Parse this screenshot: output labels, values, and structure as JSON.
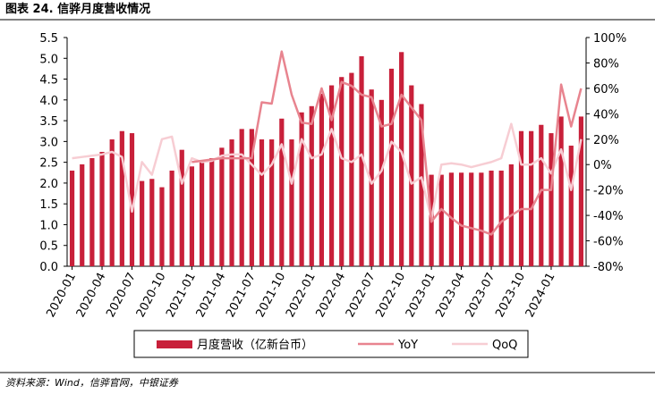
{
  "header": {
    "title": "图表 24.  信骅月度营收情况"
  },
  "chart_data": {
    "type": "bar_line",
    "categories": [
      "2020-01",
      null,
      null,
      "2020-04",
      null,
      null,
      "2020-07",
      null,
      null,
      "2020-10",
      null,
      null,
      "2021-01",
      null,
      null,
      "2021-04",
      null,
      null,
      "2021-07",
      null,
      null,
      "2021-10",
      null,
      null,
      "2022-01",
      null,
      null,
      "2022-04",
      null,
      null,
      "2022-07",
      null,
      null,
      "2022-10",
      null,
      null,
      "2023-01",
      null,
      null,
      "2023-04",
      null,
      null,
      "2023-07",
      null,
      null,
      "2023-10",
      null,
      null,
      "2024-01",
      null,
      null,
      null
    ],
    "series": [
      {
        "name": "月度营收（亿新台币）",
        "type": "bar",
        "color": "#c8203a",
        "values": [
          2.3,
          2.45,
          2.6,
          2.75,
          3.05,
          3.25,
          3.2,
          2.05,
          2.1,
          1.9,
          2.3,
          2.8,
          2.4,
          2.55,
          2.6,
          2.85,
          3.05,
          3.3,
          3.3,
          3.05,
          3.05,
          3.55,
          3.05,
          3.7,
          3.85,
          4.15,
          4.35,
          4.55,
          4.65,
          5.05,
          4.25,
          4.0,
          4.75,
          5.15,
          4.35,
          3.9,
          2.2,
          2.2,
          2.25,
          2.25,
          2.25,
          2.25,
          2.3,
          2.3,
          2.45,
          3.25,
          3.25,
          3.4,
          3.2,
          3.6,
          2.9,
          3.6
        ]
      },
      {
        "name": "YoY",
        "type": "line",
        "axis": "y2",
        "color": "#e8848f",
        "values": [
          null,
          null,
          null,
          null,
          null,
          null,
          null,
          null,
          null,
          null,
          null,
          null,
          2,
          3,
          4,
          5,
          5,
          5,
          5,
          49,
          48,
          89,
          55,
          33,
          32,
          60,
          35,
          65,
          62,
          55,
          53,
          30,
          32,
          55,
          45,
          35,
          -45,
          -35,
          -42,
          -48,
          -50,
          -52,
          -55,
          -45,
          -40,
          -35,
          -35,
          -20,
          -20,
          63,
          30,
          60
        ]
      },
      {
        "name": "QoQ",
        "type": "line",
        "axis": "y2",
        "color": "#f7cdd3",
        "values": [
          5,
          6,
          7,
          8,
          10,
          6,
          -37,
          2,
          -8,
          20,
          22,
          -15,
          5,
          2,
          3,
          7,
          8,
          8,
          0,
          -8,
          0,
          16,
          -15,
          20,
          5,
          8,
          28,
          5,
          2,
          8,
          -15,
          -5,
          18,
          10,
          -15,
          -10,
          -43,
          0,
          1,
          0,
          -2,
          0,
          2,
          5,
          32,
          0,
          0,
          5,
          -7,
          12,
          -20,
          20
        ]
      }
    ],
    "ylim": [
      0,
      5.5
    ],
    "yticks": [
      {
        "value": 0,
        "label": "0.0"
      },
      0.5,
      {
        "value": 1,
        "label": "1.0"
      },
      1.5,
      {
        "value": 2,
        "label": "2.0"
      },
      2.5,
      {
        "value": 3,
        "label": "3.0"
      },
      3.5,
      {
        "value": 4,
        "label": "4.0"
      },
      4.5,
      {
        "value": 5,
        "label": "5.0"
      },
      5.5
    ],
    "y2lim": [
      -80,
      100
    ],
    "y2ticks": [
      {
        "value": -80,
        "label": "-80%"
      },
      {
        "value": -60,
        "label": "-60%"
      },
      {
        "value": -40,
        "label": "-40%"
      },
      {
        "value": -20,
        "label": "-20%"
      },
      {
        "value": 0,
        "label": "0%"
      },
      {
        "value": 20,
        "label": "20%"
      },
      {
        "value": 40,
        "label": "40%"
      },
      {
        "value": 60,
        "label": "60%"
      },
      {
        "value": 80,
        "label": "80%"
      },
      {
        "value": 100,
        "label": "100%"
      }
    ]
  },
  "footer": {
    "source": "资料来源：Wind，信骅官网，中银证券"
  }
}
